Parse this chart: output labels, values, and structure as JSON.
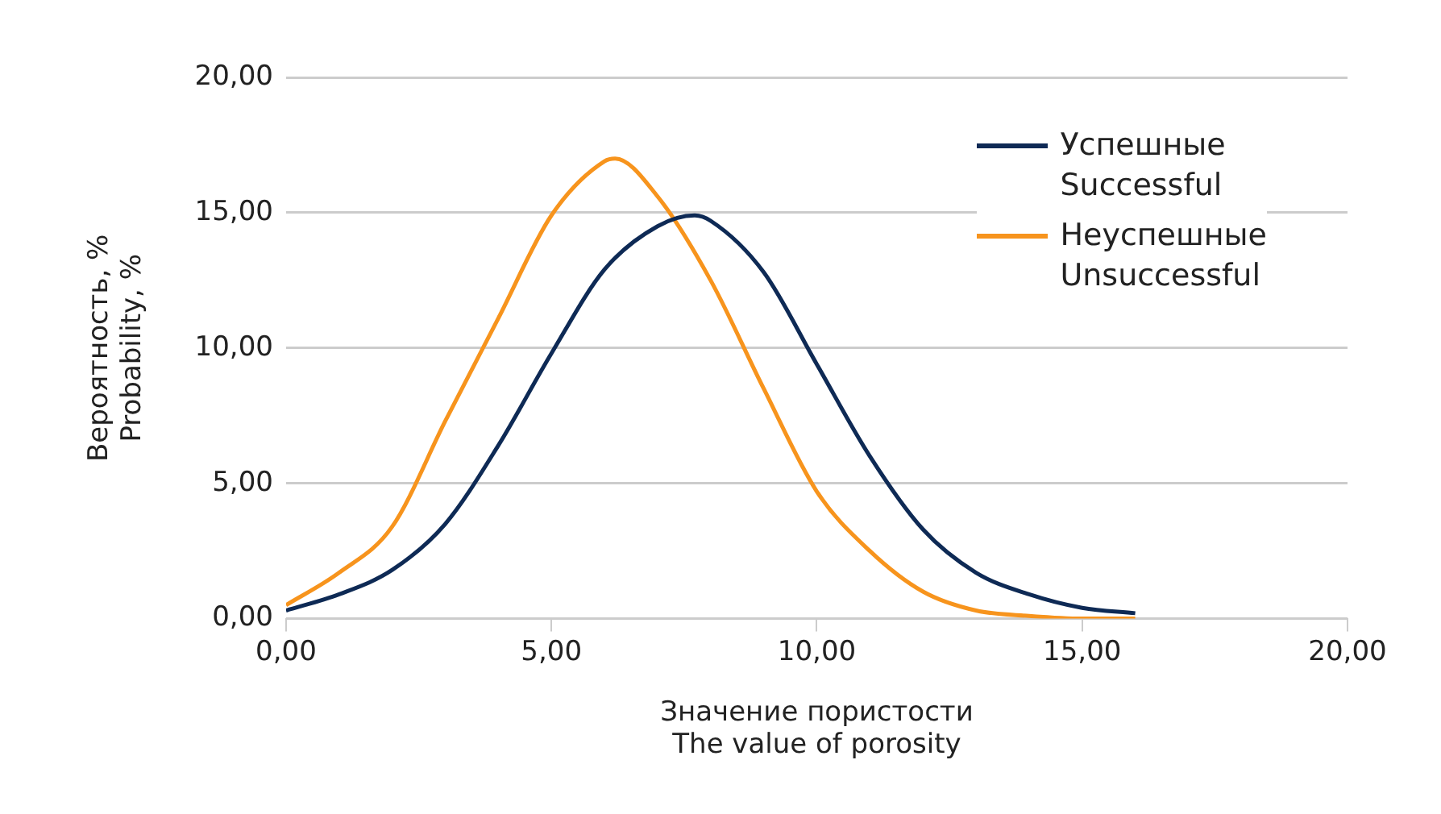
{
  "chart_data": {
    "type": "line",
    "xlabel": "Значение пористости\nThe value of porosity",
    "ylabel": "Вероятность, %\nProbability, %",
    "x": [
      0,
      1,
      2,
      3,
      4,
      5,
      6,
      7,
      7.7,
      8,
      9,
      10,
      11,
      12,
      13,
      14,
      15,
      16
    ],
    "series": [
      {
        "name": "Успешные\nSuccessful",
        "color": "#0e2a55",
        "values": [
          0.3,
          0.9,
          1.8,
          3.5,
          6.4,
          9.8,
          12.9,
          14.5,
          14.9,
          14.7,
          12.8,
          9.4,
          6.0,
          3.3,
          1.7,
          0.9,
          0.4,
          0.2
        ]
      },
      {
        "name": "Неуспешные\nUnsuccessful",
        "color": "#f7941d",
        "x": [
          0,
          1,
          2,
          3,
          4,
          5,
          6,
          6.2,
          7,
          8,
          9,
          10,
          11,
          12,
          13,
          14,
          15,
          16
        ],
        "values": [
          0.5,
          1.7,
          3.4,
          7.3,
          11.1,
          14.9,
          16.9,
          17.0,
          15.6,
          12.5,
          8.5,
          4.7,
          2.5,
          1.0,
          0.3,
          0.1,
          0.0,
          0.0
        ]
      }
    ],
    "xlim": [
      0,
      20
    ],
    "xticks": [
      {
        "value": 0,
        "label": "0,00"
      },
      {
        "value": 5,
        "label": "5,00"
      },
      {
        "value": 10,
        "label": "10,00"
      },
      {
        "value": 15,
        "label": "15,00"
      },
      {
        "value": 20,
        "label": "20,00"
      }
    ],
    "ylim": [
      0,
      20
    ],
    "yticks": [
      {
        "value": 0,
        "label": "0,00"
      },
      {
        "value": 5,
        "label": "5,00"
      },
      {
        "value": 10,
        "label": "10,00"
      },
      {
        "value": 15,
        "label": "15,00"
      },
      {
        "value": 20,
        "label": "20,00"
      }
    ],
    "grid": "y",
    "legend": "top right",
    "marker": "none",
    "line_style": "solid"
  }
}
